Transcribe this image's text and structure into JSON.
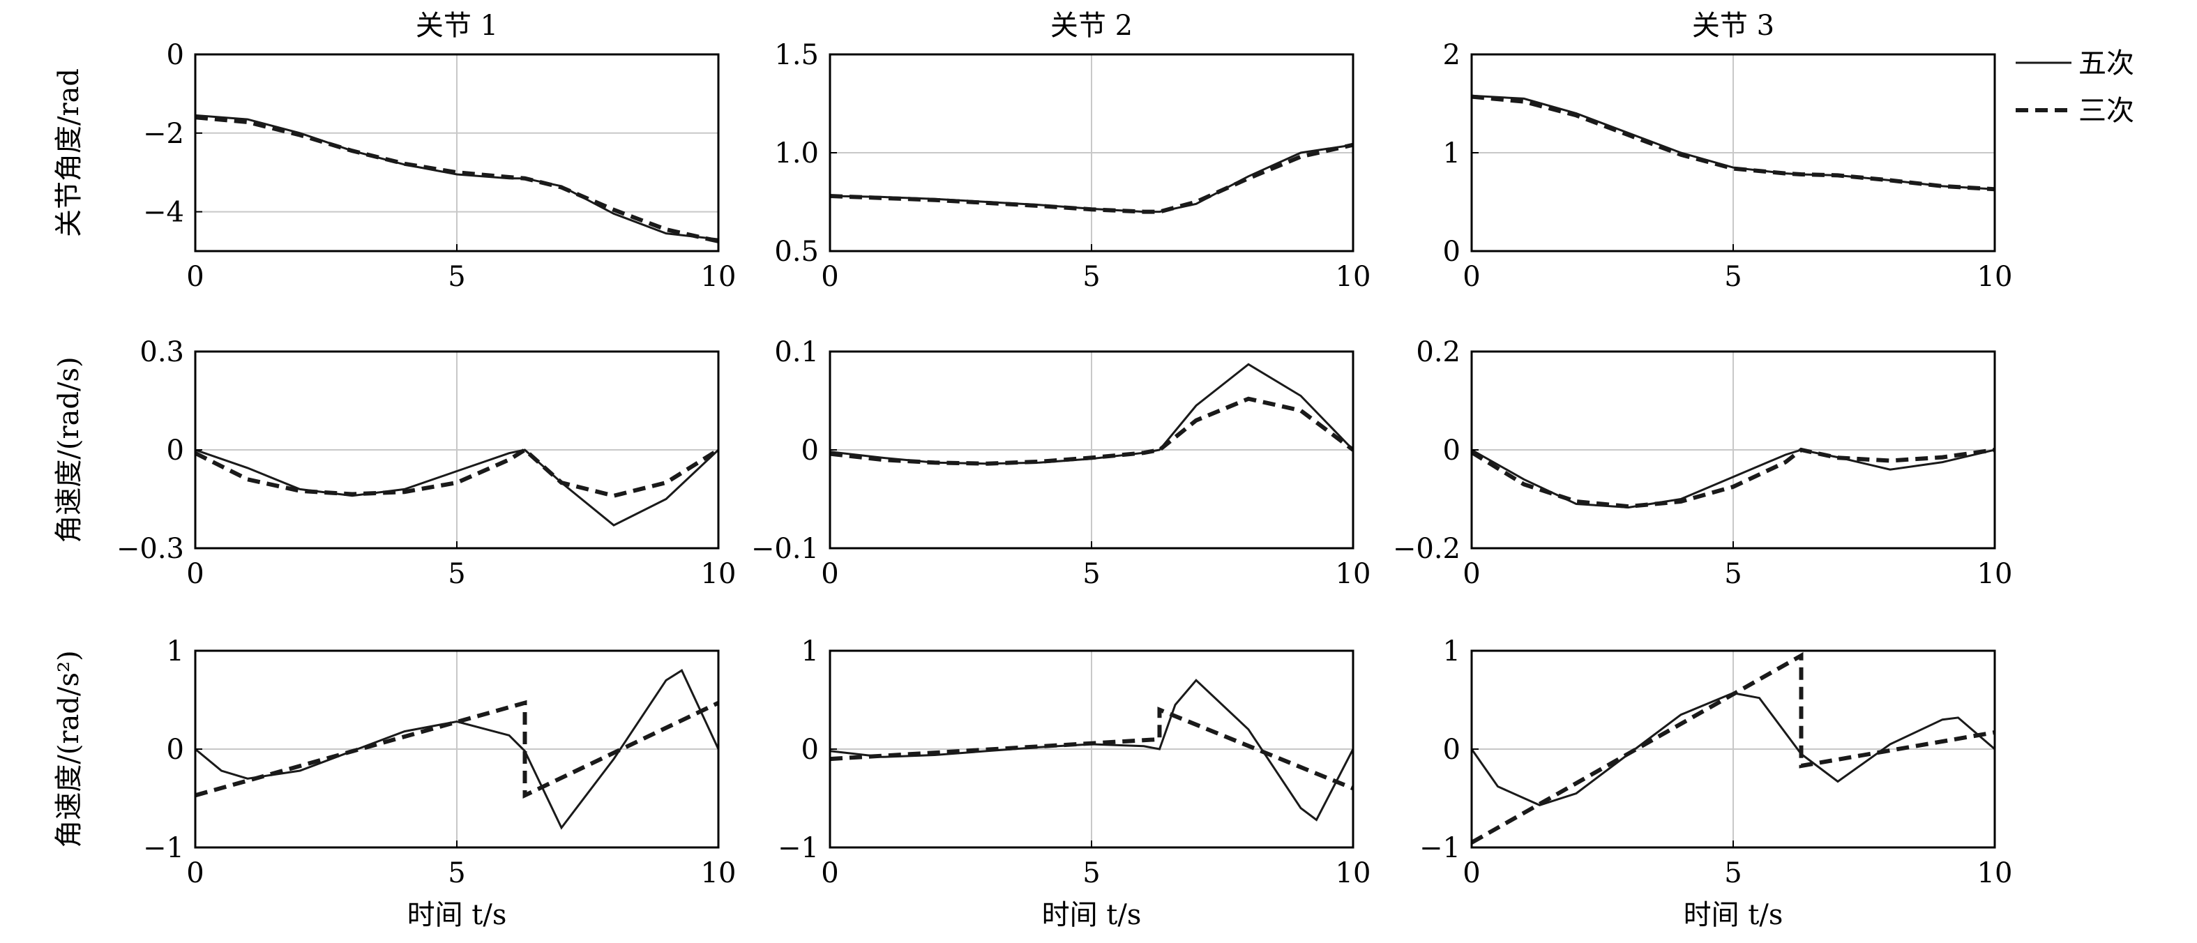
{
  "legend": {
    "quintic": "五次",
    "cubic": "三次"
  },
  "chart_data": [
    {
      "type": "line",
      "row": 0,
      "col": 0,
      "title": "关节 1",
      "ylabel": "关节角度/rad",
      "xlabel": "",
      "xlim": [
        0,
        10
      ],
      "ylim": [
        -5,
        0
      ],
      "xticks": [
        0,
        5,
        10
      ],
      "yticks": [
        0,
        -2,
        -4
      ],
      "ytick_labels": [
        "0",
        "−2",
        "−4"
      ],
      "grid": true,
      "series": [
        {
          "name": "五次",
          "x": [
            0,
            1,
            2,
            3,
            4,
            5,
            6,
            6.3,
            7,
            8,
            9,
            10
          ],
          "y": [
            -1.55,
            -1.65,
            -2.0,
            -2.45,
            -2.8,
            -3.05,
            -3.15,
            -3.15,
            -3.35,
            -4.05,
            -4.55,
            -4.7
          ]
        },
        {
          "name": "三次",
          "x": [
            0,
            1,
            2,
            3,
            4,
            5,
            6,
            6.3,
            7,
            8,
            9,
            10
          ],
          "y": [
            -1.6,
            -1.72,
            -2.05,
            -2.45,
            -2.78,
            -3.0,
            -3.12,
            -3.15,
            -3.38,
            -3.95,
            -4.45,
            -4.75
          ]
        }
      ]
    },
    {
      "type": "line",
      "row": 0,
      "col": 1,
      "title": "关节 2",
      "ylabel": "",
      "xlabel": "",
      "xlim": [
        0,
        10
      ],
      "ylim": [
        0.5,
        1.5
      ],
      "xticks": [
        0,
        5,
        10
      ],
      "yticks": [
        1.5,
        1.0,
        0.5
      ],
      "ytick_labels": [
        "1.5",
        "1.0",
        "0.5"
      ],
      "grid": true,
      "series": [
        {
          "name": "五次",
          "x": [
            0,
            1,
            2,
            3,
            4,
            5,
            6,
            6.3,
            7,
            8,
            9,
            10
          ],
          "y": [
            0.78,
            0.775,
            0.765,
            0.75,
            0.735,
            0.715,
            0.7,
            0.7,
            0.74,
            0.88,
            1.0,
            1.04
          ]
        },
        {
          "name": "三次",
          "x": [
            0,
            1,
            2,
            3,
            4,
            5,
            6,
            6.3,
            7,
            8,
            9,
            10
          ],
          "y": [
            0.78,
            0.77,
            0.76,
            0.745,
            0.73,
            0.712,
            0.7,
            0.7,
            0.75,
            0.87,
            0.98,
            1.04
          ]
        }
      ]
    },
    {
      "type": "line",
      "row": 0,
      "col": 2,
      "title": "关节 3",
      "ylabel": "",
      "xlabel": "",
      "xlim": [
        0,
        10
      ],
      "ylim": [
        0,
        2
      ],
      "xticks": [
        0,
        5,
        10
      ],
      "yticks": [
        2,
        1,
        0
      ],
      "ytick_labels": [
        "2",
        "1",
        "0"
      ],
      "grid": true,
      "series": [
        {
          "name": "五次",
          "x": [
            0,
            1,
            2,
            3,
            4,
            5,
            6,
            6.3,
            7,
            8,
            9,
            10
          ],
          "y": [
            1.58,
            1.55,
            1.4,
            1.2,
            1.0,
            0.85,
            0.79,
            0.78,
            0.77,
            0.72,
            0.66,
            0.63
          ]
        },
        {
          "name": "三次",
          "x": [
            0,
            1,
            2,
            3,
            4,
            5,
            6,
            6.3,
            7,
            8,
            9,
            10
          ],
          "y": [
            1.57,
            1.52,
            1.38,
            1.18,
            0.98,
            0.84,
            0.79,
            0.78,
            0.77,
            0.72,
            0.66,
            0.63
          ]
        }
      ]
    },
    {
      "type": "line",
      "row": 1,
      "col": 0,
      "title": "",
      "ylabel": "角速度/(rad/s)",
      "xlabel": "",
      "xlim": [
        0,
        10
      ],
      "ylim": [
        -0.3,
        0.3
      ],
      "xticks": [
        0,
        5,
        10
      ],
      "yticks": [
        0.3,
        0,
        -0.3
      ],
      "ytick_labels": [
        "0.3",
        "0",
        "−0.3"
      ],
      "grid": true,
      "series": [
        {
          "name": "五次",
          "x": [
            0,
            1,
            2,
            3,
            4,
            5,
            6,
            6.3,
            7,
            8,
            9,
            10
          ],
          "y": [
            0,
            -0.055,
            -0.12,
            -0.14,
            -0.12,
            -0.065,
            -0.01,
            0,
            -0.1,
            -0.23,
            -0.15,
            0
          ]
        },
        {
          "name": "三次",
          "x": [
            0,
            1,
            2,
            3,
            4,
            5,
            6,
            6.3,
            7,
            8,
            9,
            10
          ],
          "y": [
            -0.01,
            -0.09,
            -0.125,
            -0.135,
            -0.128,
            -0.1,
            -0.03,
            0,
            -0.1,
            -0.14,
            -0.1,
            0
          ]
        }
      ]
    },
    {
      "type": "line",
      "row": 1,
      "col": 1,
      "title": "",
      "ylabel": "",
      "xlabel": "",
      "xlim": [
        0,
        10
      ],
      "ylim": [
        -0.1,
        0.1
      ],
      "xticks": [
        0,
        5,
        10
      ],
      "yticks": [
        0.1,
        0,
        -0.1
      ],
      "ytick_labels": [
        "0.1",
        "0",
        "−0.1"
      ],
      "grid": true,
      "series": [
        {
          "name": "五次",
          "x": [
            0,
            1,
            2,
            3,
            4,
            5,
            6,
            6.3,
            7,
            8,
            9,
            10
          ],
          "y": [
            -0.002,
            -0.008,
            -0.013,
            -0.014,
            -0.013,
            -0.009,
            -0.003,
            0,
            0.045,
            0.087,
            0.055,
            0
          ]
        },
        {
          "name": "三次",
          "x": [
            0,
            1,
            2,
            3,
            4,
            5,
            6,
            6.3,
            7,
            8,
            9,
            10
          ],
          "y": [
            -0.004,
            -0.01,
            -0.013,
            -0.014,
            -0.012,
            -0.008,
            -0.003,
            0,
            0.03,
            0.052,
            0.04,
            0
          ]
        }
      ]
    },
    {
      "type": "line",
      "row": 1,
      "col": 2,
      "title": "",
      "ylabel": "",
      "xlabel": "",
      "xlim": [
        0,
        10
      ],
      "ylim": [
        -0.2,
        0.2
      ],
      "xticks": [
        0,
        5,
        10
      ],
      "yticks": [
        0.2,
        0,
        -0.2
      ],
      "ytick_labels": [
        "0.2",
        "0",
        "−0.2"
      ],
      "grid": true,
      "series": [
        {
          "name": "五次",
          "x": [
            0,
            1,
            2,
            3,
            4,
            5,
            6,
            6.3,
            7,
            8,
            9,
            10
          ],
          "y": [
            0,
            -0.06,
            -0.11,
            -0.117,
            -0.1,
            -0.055,
            -0.01,
            0,
            -0.015,
            -0.04,
            -0.025,
            0
          ]
        },
        {
          "name": "三次",
          "x": [
            0,
            1,
            2,
            3,
            4,
            5,
            6,
            6.3,
            7,
            8,
            9,
            10
          ],
          "y": [
            -0.005,
            -0.07,
            -0.105,
            -0.115,
            -0.105,
            -0.075,
            -0.025,
            0,
            -0.016,
            -0.022,
            -0.015,
            0
          ]
        }
      ]
    },
    {
      "type": "line",
      "row": 2,
      "col": 0,
      "title": "",
      "ylabel": "角速度/(rad/s²)",
      "xlabel": "时间 t/s",
      "xlim": [
        0,
        10
      ],
      "ylim": [
        -1,
        1
      ],
      "xticks": [
        0,
        5,
        10
      ],
      "yticks": [
        1,
        0,
        -1
      ],
      "ytick_labels": [
        "1",
        "0",
        "−1"
      ],
      "grid": true,
      "series": [
        {
          "name": "五次",
          "x": [
            0,
            0.5,
            1,
            2,
            3,
            4,
            5,
            6,
            6.3,
            7,
            8,
            9,
            9.3,
            10
          ],
          "y": [
            0,
            -0.22,
            -0.3,
            -0.22,
            -0.02,
            0.18,
            0.28,
            0.14,
            -0.02,
            -0.8,
            -0.1,
            0.7,
            0.8,
            0
          ]
        },
        {
          "name": "三次",
          "x": [
            0,
            6.3,
            6.3,
            10
          ],
          "y": [
            -0.47,
            0.47,
            -0.47,
            0.47
          ]
        }
      ]
    },
    {
      "type": "line",
      "row": 2,
      "col": 1,
      "title": "",
      "ylabel": "",
      "xlabel": "时间 t/s",
      "xlim": [
        0,
        10
      ],
      "ylim": [
        -1,
        1
      ],
      "xticks": [
        0,
        5,
        10
      ],
      "yticks": [
        1,
        0,
        -1
      ],
      "ytick_labels": [
        "1",
        "0",
        "−1"
      ],
      "grid": true,
      "series": [
        {
          "name": "五次",
          "x": [
            0,
            1,
            2,
            3,
            4,
            5,
            6,
            6.3,
            6.6,
            7,
            8,
            9,
            9.3,
            10
          ],
          "y": [
            -0.02,
            -0.08,
            -0.06,
            -0.02,
            0.02,
            0.05,
            0.03,
            0,
            0.45,
            0.7,
            0.2,
            -0.6,
            -0.72,
            0
          ]
        },
        {
          "name": "三次",
          "x": [
            0,
            6.3,
            6.3,
            10
          ],
          "y": [
            -0.1,
            0.1,
            0.4,
            -0.4
          ]
        }
      ]
    },
    {
      "type": "line",
      "row": 2,
      "col": 2,
      "title": "",
      "ylabel": "",
      "xlabel": "时间 t/s",
      "xlim": [
        0,
        10
      ],
      "ylim": [
        -1,
        1
      ],
      "xticks": [
        0,
        5,
        10
      ],
      "yticks": [
        1,
        0,
        -1
      ],
      "ytick_labels": [
        "1",
        "0",
        "−1"
      ],
      "grid": true,
      "series": [
        {
          "name": "五次",
          "x": [
            0,
            0.5,
            1.3,
            2,
            3,
            4,
            5,
            5.5,
            6.3,
            7,
            8,
            9,
            9.3,
            10
          ],
          "y": [
            0,
            -0.38,
            -0.57,
            -0.45,
            -0.05,
            0.35,
            0.57,
            0.52,
            -0.05,
            -0.33,
            0.05,
            0.3,
            0.32,
            0
          ]
        },
        {
          "name": "三次",
          "x": [
            0,
            6.3,
            6.3,
            10
          ],
          "y": [
            -0.95,
            0.95,
            -0.17,
            0.17
          ]
        }
      ]
    }
  ]
}
